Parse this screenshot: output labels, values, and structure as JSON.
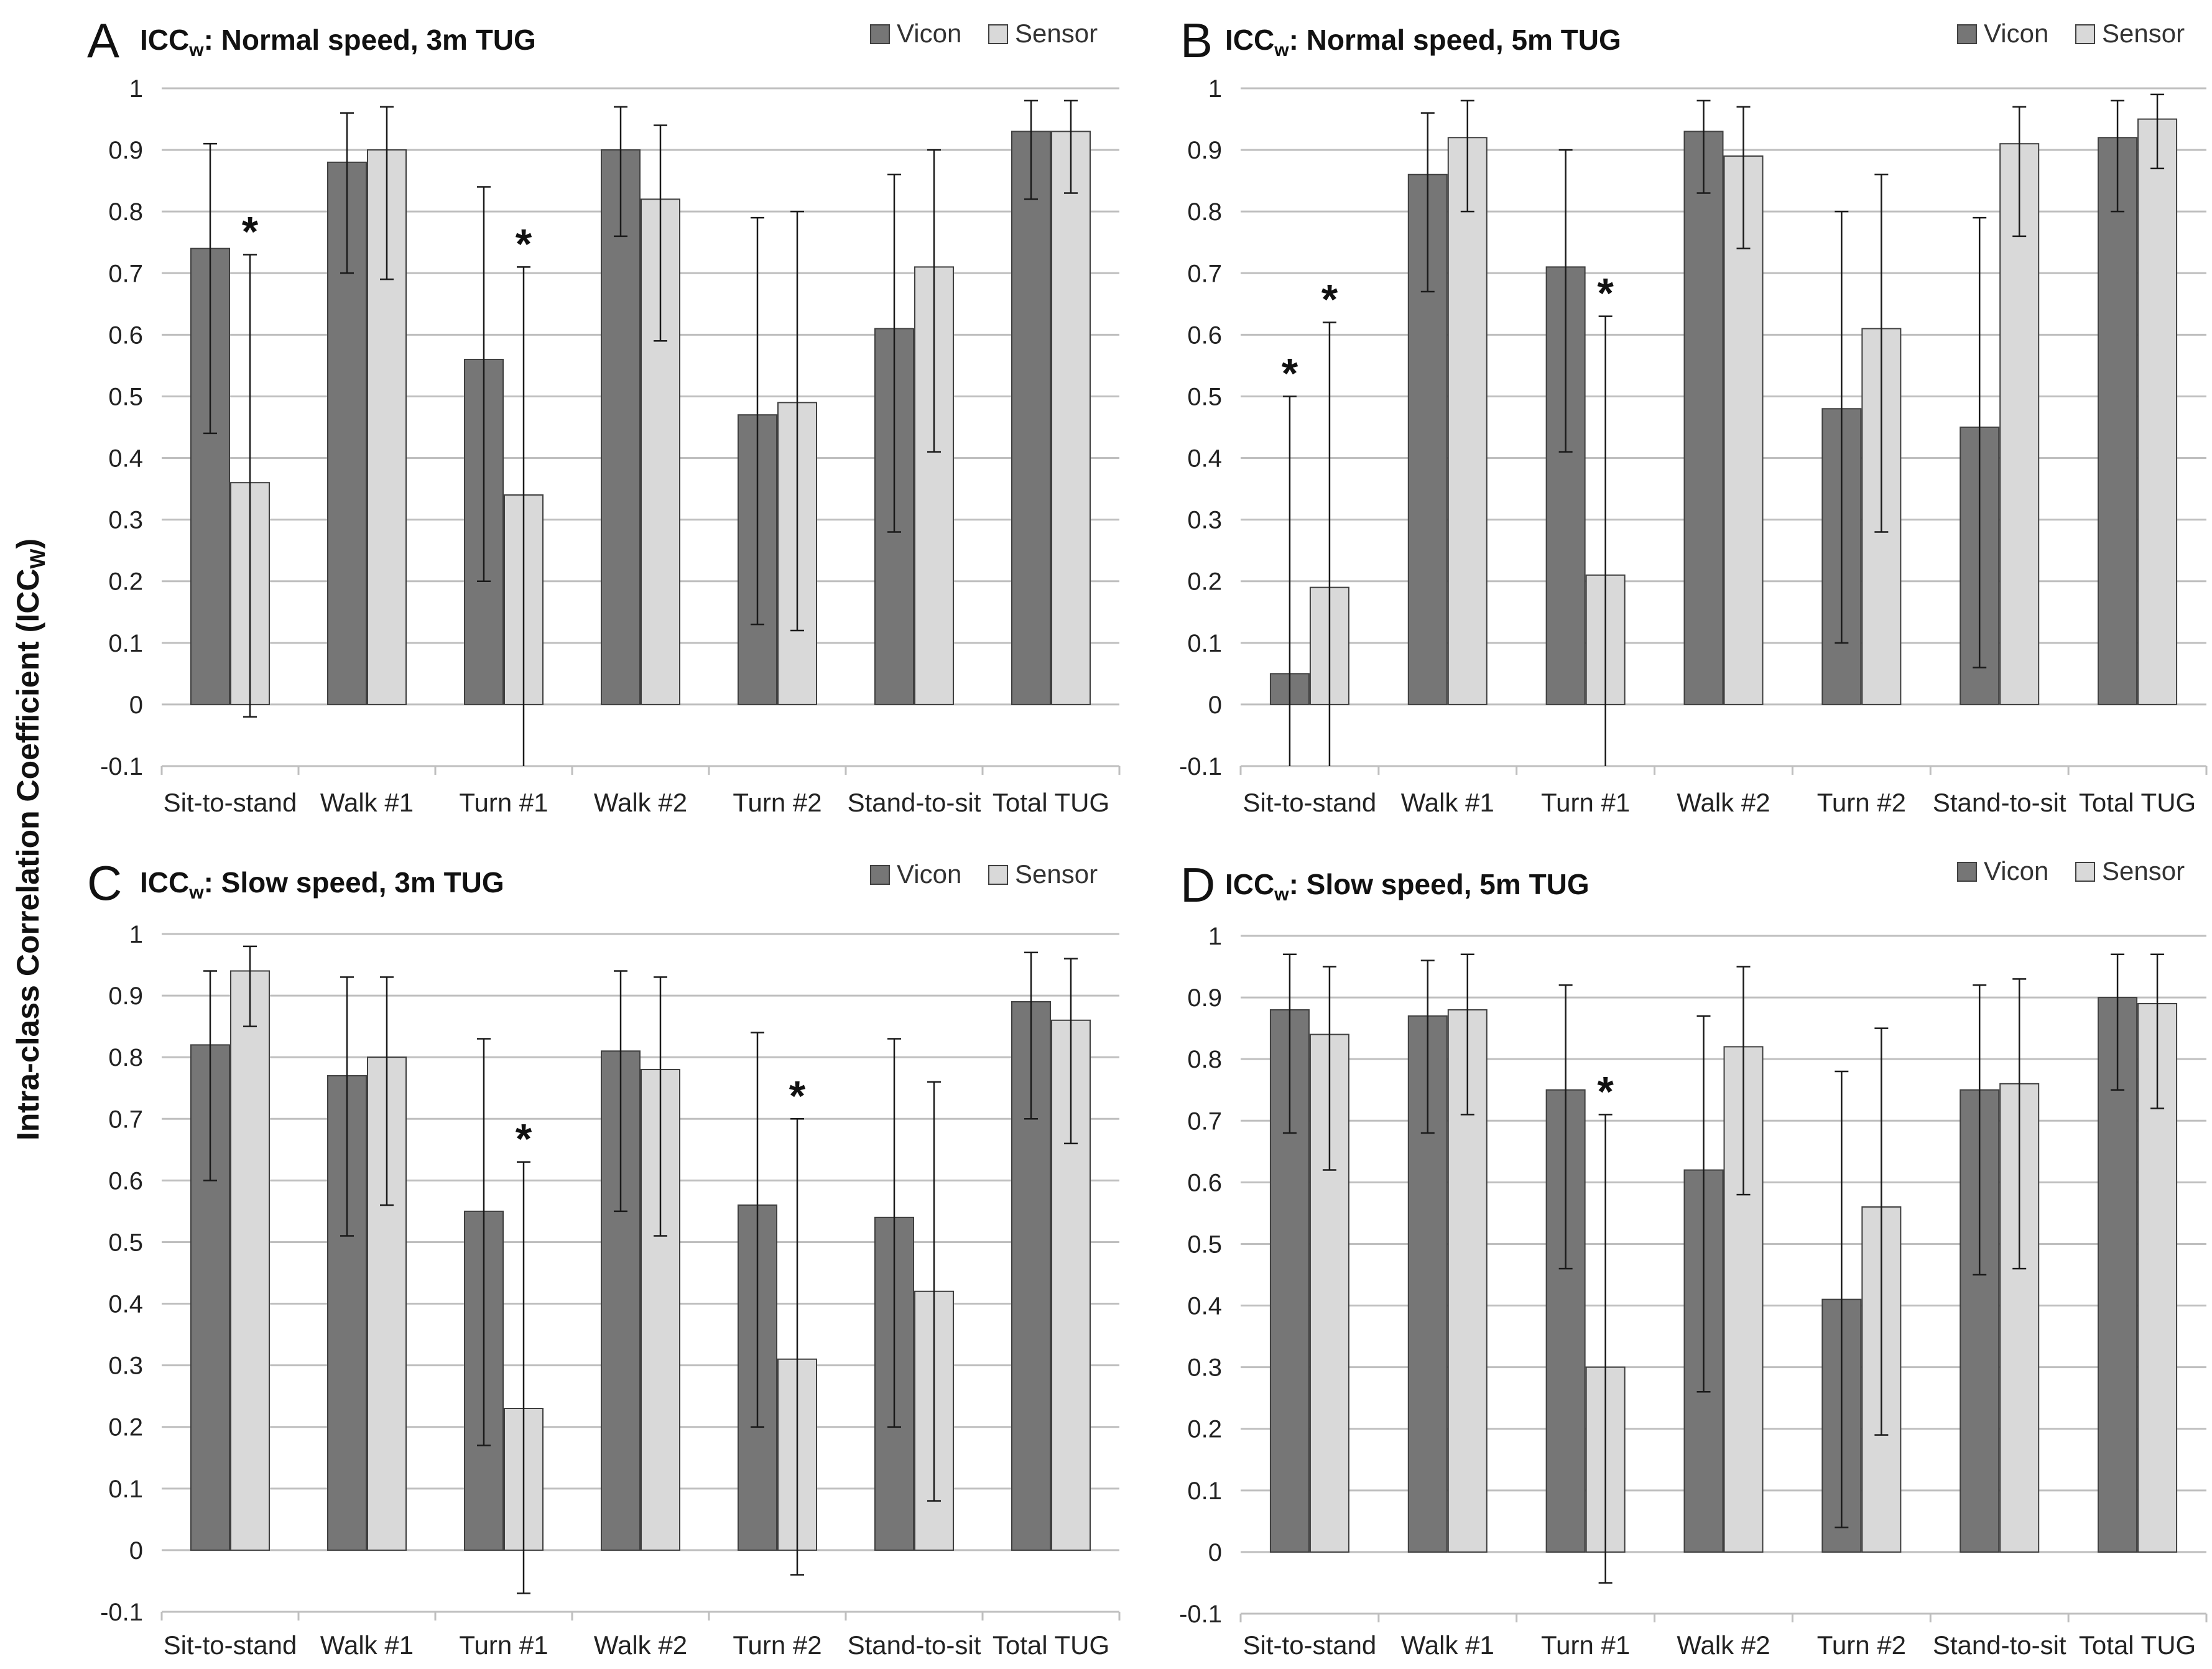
{
  "colors": {
    "vicon": "#767676",
    "sensor": "#d9d9d9",
    "grid": "#bfbfbf",
    "edge": "#404040"
  },
  "y_axis_label": {
    "text": "Intra-class Correlation Coefficient (ICC",
    "sub": "W",
    "close": ")"
  },
  "chart_data": [
    {
      "type": "bar",
      "panel": "A",
      "title": {
        "prefix": "ICC",
        "sub": "w",
        "text": ": Normal speed, 3m TUG"
      },
      "categories": [
        "Sit-to-stand",
        "Walk #1",
        "Turn #1",
        "Walk #2",
        "Turn #2",
        "Stand-to-sit",
        "Total TUG"
      ],
      "series": [
        {
          "name": "Vicon",
          "values": [
            0.74,
            0.88,
            0.56,
            0.9,
            0.47,
            0.61,
            0.93
          ],
          "ci_low": [
            0.44,
            0.7,
            0.2,
            0.76,
            0.13,
            0.28,
            0.82
          ],
          "ci_high": [
            0.91,
            0.96,
            0.84,
            0.97,
            0.79,
            0.86,
            0.98
          ]
        },
        {
          "name": "Sensor",
          "values": [
            0.36,
            0.9,
            0.34,
            0.82,
            0.49,
            0.71,
            0.93
          ],
          "ci_low": [
            -0.02,
            0.69,
            -0.1,
            0.59,
            0.12,
            0.41,
            0.83
          ],
          "ci_high": [
            0.73,
            0.97,
            0.71,
            0.94,
            0.8,
            0.9,
            0.98
          ]
        }
      ],
      "significance": [
        {
          "category": 0,
          "series": 1
        },
        {
          "category": 2,
          "series": 1
        }
      ],
      "ylim": [
        -0.1,
        1
      ],
      "yticks": [
        -0.1,
        0,
        0.1,
        0.2,
        0.3,
        0.4,
        0.5,
        0.6,
        0.7,
        0.8,
        0.9,
        1
      ],
      "grid": true,
      "legend": "top-right"
    },
    {
      "type": "bar",
      "panel": "B",
      "title": {
        "prefix": "ICC",
        "sub": "w",
        "text": ": Normal speed, 5m TUG"
      },
      "categories": [
        "Sit-to-stand",
        "Walk #1",
        "Turn #1",
        "Walk #2",
        "Turn #2",
        "Stand-to-sit",
        "Total TUG"
      ],
      "series": [
        {
          "name": "Vicon",
          "values": [
            0.05,
            0.86,
            0.71,
            0.93,
            0.48,
            0.45,
            0.92
          ],
          "ci_low": [
            -0.1,
            0.67,
            0.41,
            0.83,
            0.1,
            0.06,
            0.8
          ],
          "ci_high": [
            0.5,
            0.96,
            0.9,
            0.98,
            0.8,
            0.79,
            0.98
          ]
        },
        {
          "name": "Sensor",
          "values": [
            0.19,
            0.92,
            0.21,
            0.89,
            0.61,
            0.91,
            0.95
          ],
          "ci_low": [
            -0.1,
            0.8,
            -0.1,
            0.74,
            0.28,
            0.76,
            0.87
          ],
          "ci_high": [
            0.62,
            0.98,
            0.63,
            0.97,
            0.86,
            0.97,
            0.99
          ]
        }
      ],
      "significance": [
        {
          "category": 0,
          "series": 0
        },
        {
          "category": 0,
          "series": 1
        },
        {
          "category": 2,
          "series": 1
        }
      ],
      "ylim": [
        -0.1,
        1
      ],
      "yticks": [
        -0.1,
        0,
        0.1,
        0.2,
        0.3,
        0.4,
        0.5,
        0.6,
        0.7,
        0.8,
        0.9,
        1
      ],
      "grid": true,
      "legend": "top-right"
    },
    {
      "type": "bar",
      "panel": "C",
      "title": {
        "prefix": "ICC",
        "sub": "w",
        "text": ": Slow speed, 3m TUG"
      },
      "categories": [
        "Sit-to-stand",
        "Walk #1",
        "Turn #1",
        "Walk #2",
        "Turn #2",
        "Stand-to-sit",
        "Total TUG"
      ],
      "series": [
        {
          "name": "Vicon",
          "values": [
            0.82,
            0.77,
            0.55,
            0.81,
            0.56,
            0.54,
            0.89
          ],
          "ci_low": [
            0.6,
            0.51,
            0.17,
            0.55,
            0.2,
            0.2,
            0.7
          ],
          "ci_high": [
            0.94,
            0.93,
            0.83,
            0.94,
            0.84,
            0.83,
            0.97
          ]
        },
        {
          "name": "Sensor",
          "values": [
            0.94,
            0.8,
            0.23,
            0.78,
            0.31,
            0.42,
            0.86
          ],
          "ci_low": [
            0.85,
            0.56,
            -0.07,
            0.51,
            -0.04,
            0.08,
            0.66
          ],
          "ci_high": [
            0.98,
            0.93,
            0.63,
            0.93,
            0.7,
            0.76,
            0.96
          ]
        }
      ],
      "significance": [
        {
          "category": 2,
          "series": 1
        },
        {
          "category": 4,
          "series": 1
        }
      ],
      "ylim": [
        -0.1,
        1
      ],
      "yticks": [
        -0.1,
        0,
        0.1,
        0.2,
        0.3,
        0.4,
        0.5,
        0.6,
        0.7,
        0.8,
        0.9,
        1
      ],
      "grid": true,
      "legend": "top-right"
    },
    {
      "type": "bar",
      "panel": "D",
      "title": {
        "prefix": "ICC",
        "sub": "w",
        "text": ": Slow speed, 5m TUG"
      },
      "categories": [
        "Sit-to-stand",
        "Walk #1",
        "Turn #1",
        "Walk #2",
        "Turn #2",
        "Stand-to-sit",
        "Total TUG"
      ],
      "series": [
        {
          "name": "Vicon",
          "values": [
            0.88,
            0.87,
            0.75,
            0.62,
            0.41,
            0.75,
            0.9
          ],
          "ci_low": [
            0.68,
            0.68,
            0.46,
            0.26,
            0.04,
            0.45,
            0.75
          ],
          "ci_high": [
            0.97,
            0.96,
            0.92,
            0.87,
            0.78,
            0.92,
            0.97
          ]
        },
        {
          "name": "Sensor",
          "values": [
            0.84,
            0.88,
            0.3,
            0.82,
            0.56,
            0.76,
            0.89
          ],
          "ci_low": [
            0.62,
            0.71,
            -0.05,
            0.58,
            0.19,
            0.46,
            0.72
          ],
          "ci_high": [
            0.95,
            0.97,
            0.71,
            0.95,
            0.85,
            0.93,
            0.97
          ]
        }
      ],
      "significance": [
        {
          "category": 2,
          "series": 1
        }
      ],
      "ylim": [
        -0.1,
        1
      ],
      "yticks": [
        -0.1,
        0,
        0.1,
        0.2,
        0.3,
        0.4,
        0.5,
        0.6,
        0.7,
        0.8,
        0.9,
        1
      ],
      "grid": true,
      "legend": "top-right"
    }
  ]
}
